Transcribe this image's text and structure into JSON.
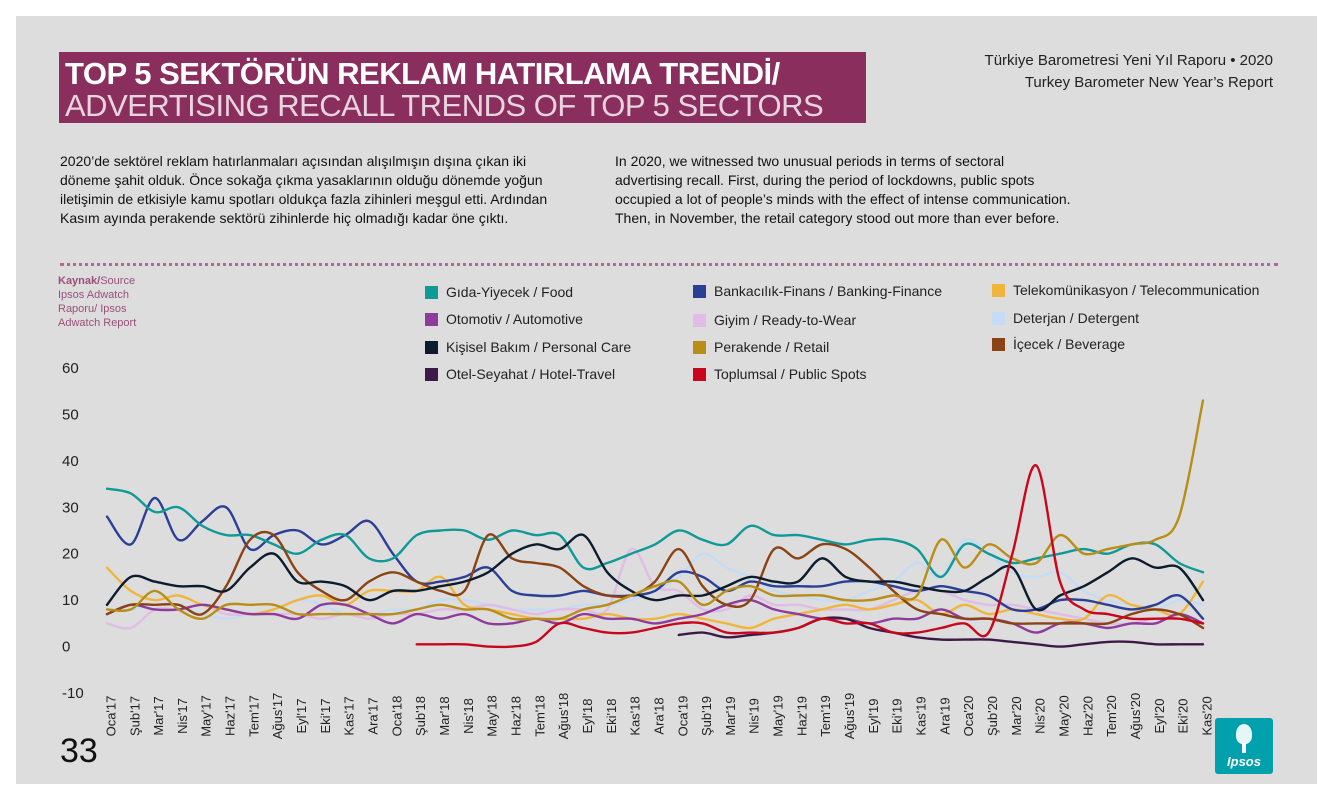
{
  "header": {
    "title_tr": "TOP 5 SEKTÖRÜN REKLAM HATIRLAMA TRENDİ/",
    "title_en": "ADVERTISING RECALL TRENDS OF TOP 5 SECTORS",
    "report_tr": "Türkiye Barometresi Yeni Yıl Raporu • 2020",
    "report_en": "Turkey Barometer New Year’s Report"
  },
  "intro": {
    "tr": "2020’de sektörel reklam hatırlanmaları açısından alışılmışın dışına çıkan iki döneme şahit olduk. Önce sokağa çıkma yasaklarının olduğu dönemde yoğun iletişimin de etkisiyle kamu spotları oldukça fazla zihinleri meşgul etti. Ardından Kasım ayında perakende sektörü zihinlerde hiç olmadığı kadar öne çıktı.",
    "en": "In 2020, we witnessed two unusual periods in terms of sectoral advertising recall. First, during the period of lockdowns, public spots occupied a lot of people’s minds with the effect of intense communication. Then, in November, the retail category stood out more than ever before."
  },
  "source": {
    "label_bold": "Kaynak/",
    "label_rest": "Source",
    "text": "Ipsos Adwatch Raporu/ Ipsos Adwatch Report"
  },
  "page_number": "33",
  "logo_text": "Ipsos",
  "colors": {
    "title_bg": "#8a2e5e",
    "panel_bg": "#dddddd"
  },
  "chart_data": {
    "type": "line",
    "title": "",
    "xlabel": "",
    "ylabel": "",
    "ylim": [
      -10,
      60
    ],
    "yticks": [
      -10,
      0,
      10,
      20,
      30,
      40,
      50,
      60
    ],
    "categories": [
      "Oca'17",
      "Şub'17",
      "Mar'17",
      "Nis'17",
      "May'17",
      "Haz'17",
      "Tem'17",
      "Ağus'17",
      "Eyl'17",
      "Eki'17",
      "Kas'17",
      "Ara'17",
      "Oca'18",
      "Şub'18",
      "Mar'18",
      "Nis'18",
      "May'18",
      "Haz'18",
      "Tem'18",
      "Ağus'18",
      "Eyl'18",
      "Eki'18",
      "Kas'18",
      "Ara'18",
      "Oca'19",
      "Şub'19",
      "Mar'19",
      "Nis'19",
      "May'19",
      "Haz'19",
      "Tem'19",
      "Ağus'19",
      "Eyl'19",
      "Eki'19",
      "Kas'19",
      "Ara'19",
      "Oca'20",
      "Şub'20",
      "Mar'20",
      "Nis'20",
      "May'20",
      "Haz'20",
      "Tem'20",
      "Ağus'20",
      "Eyl'20",
      "Eki'20",
      "Kas'20"
    ],
    "series": [
      {
        "name": "Gıda-Yiyecek / Food",
        "color": "#0f9a97",
        "values": [
          34,
          33,
          29,
          30,
          26,
          24,
          24,
          22,
          20,
          23,
          24,
          19,
          19,
          24,
          25,
          25,
          23,
          25,
          24,
          24,
          17,
          18,
          20,
          22,
          25,
          23,
          22,
          26,
          24,
          24,
          23,
          22,
          23,
          23,
          21,
          15,
          22,
          20,
          18,
          19,
          20,
          21,
          20,
          22,
          22,
          18,
          16
        ]
      },
      {
        "name": "Bankacılık-Finans / Banking-Finance",
        "color": "#2b3f95",
        "values": [
          28,
          22,
          32,
          23,
          27,
          30,
          21,
          24,
          25,
          22,
          24,
          27,
          20,
          14,
          14,
          15,
          17,
          12,
          11,
          11,
          12,
          11,
          11,
          12,
          16,
          15,
          12,
          14,
          13,
          13,
          13,
          14,
          14,
          13,
          12,
          13,
          12,
          11,
          8,
          8,
          10,
          10,
          9,
          8,
          9,
          11,
          6
        ]
      },
      {
        "name": "Telekomünikasyon / Telecommunication",
        "color": "#f0b63c",
        "values": [
          17,
          12,
          10,
          11,
          9,
          8,
          7,
          8,
          10,
          11,
          9,
          12,
          12,
          12,
          15,
          9,
          8,
          7,
          6,
          6,
          6,
          7,
          6,
          6,
          7,
          6,
          5,
          4,
          6,
          7,
          8,
          9,
          8,
          9,
          10,
          7,
          9,
          7,
          8,
          7,
          6,
          6,
          11,
          9,
          8,
          7,
          14
        ]
      },
      {
        "name": "Otomotiv / Automotive",
        "color": "#8e3c9c",
        "values": [
          7,
          9,
          8,
          8,
          9,
          8,
          7,
          7,
          6,
          9,
          9,
          7,
          5,
          7,
          6,
          7,
          5,
          5,
          6,
          5,
          7,
          6,
          6,
          5,
          6,
          7,
          9,
          10,
          8,
          7,
          6,
          6,
          5,
          6,
          6,
          8,
          6,
          6,
          5,
          3,
          5,
          5,
          4,
          5,
          5,
          7,
          5
        ]
      },
      {
        "name": "Giyim / Ready-to-Wear",
        "color": "#e0bce6",
        "values": [
          5,
          4,
          8,
          8,
          9,
          7,
          7,
          7,
          7,
          6,
          7,
          6,
          7,
          7,
          8,
          8,
          9,
          8,
          7,
          8,
          8,
          8,
          21,
          13,
          12,
          8,
          8,
          11,
          9,
          9,
          8,
          8,
          8,
          10,
          12,
          12,
          10,
          9,
          9,
          8,
          7,
          6,
          5,
          5,
          6,
          6,
          5
        ]
      },
      {
        "name": "Deterjan / Detergent",
        "color": "#c4dcf5",
        "values": [
          8,
          8,
          9,
          9,
          7,
          6,
          7,
          8,
          10,
          9,
          7,
          7,
          8,
          8,
          10,
          10,
          9,
          8,
          8,
          8,
          9,
          9,
          10,
          12,
          15,
          20,
          17,
          15,
          12,
          11,
          10,
          10,
          12,
          14,
          18,
          15,
          23,
          20,
          16,
          15,
          16,
          12,
          10,
          9,
          8,
          10,
          9
        ]
      },
      {
        "name": "Kişisel Bakım / Personal Care",
        "color": "#0c1c2c",
        "values": [
          9,
          15,
          14,
          13,
          13,
          12,
          17,
          20,
          14,
          14,
          13,
          10,
          12,
          12,
          13,
          14,
          16,
          20,
          22,
          21,
          24,
          16,
          12,
          10,
          11,
          11,
          13,
          15,
          14,
          14,
          19,
          15,
          14,
          14,
          13,
          12,
          12,
          15,
          17,
          8,
          11,
          13,
          16,
          19,
          17,
          17,
          10
        ]
      },
      {
        "name": "Perakende / Retail",
        "color": "#b88e18",
        "values": [
          8,
          8,
          12,
          8,
          6,
          9,
          9,
          9,
          7,
          7,
          7,
          7,
          7,
          8,
          9,
          8,
          8,
          6,
          6,
          6,
          8,
          9,
          11,
          13,
          14,
          9,
          12,
          13,
          11,
          11,
          11,
          10,
          10,
          11,
          11,
          23,
          17,
          22,
          19,
          18,
          24,
          20,
          21,
          22,
          23,
          28,
          53
        ]
      },
      {
        "name": "İçecek / Beverage",
        "color": "#8b4214",
        "values": [
          7,
          9,
          9,
          9,
          7,
          13,
          23,
          24,
          16,
          12,
          10,
          14,
          16,
          14,
          12,
          12,
          24,
          19,
          18,
          17,
          13,
          11,
          11,
          14,
          21,
          13,
          9,
          10,
          21,
          19,
          22,
          21,
          17,
          12,
          8,
          7,
          6,
          6,
          5,
          5,
          5,
          5,
          5,
          7,
          8,
          7,
          4
        ]
      },
      {
        "name": "Otel-Seyahat / Hotel-Travel",
        "color": "#3d1a46",
        "values": [
          null,
          null,
          null,
          null,
          null,
          null,
          null,
          null,
          null,
          null,
          null,
          null,
          null,
          null,
          null,
          null,
          null,
          null,
          null,
          null,
          null,
          null,
          null,
          null,
          2.5,
          3,
          2,
          2.5,
          3,
          4,
          6,
          6,
          4,
          3,
          2,
          1.5,
          1.5,
          1.5,
          1,
          0.5,
          0,
          0.5,
          1,
          1,
          0.5,
          0.5,
          0.5
        ]
      },
      {
        "name": "Toplumsal / Public Spots",
        "color": "#c8071c",
        "values": [
          null,
          null,
          null,
          null,
          null,
          null,
          null,
          null,
          null,
          null,
          null,
          null,
          null,
          0.5,
          0.5,
          0.5,
          0,
          0,
          1,
          5,
          4,
          3,
          3,
          4,
          5,
          5,
          3,
          3,
          3,
          4,
          6,
          5,
          5,
          3,
          3,
          4,
          5,
          3,
          20,
          39,
          14,
          8,
          7,
          6,
          6,
          6,
          5
        ]
      }
    ],
    "legend_position": "top"
  }
}
